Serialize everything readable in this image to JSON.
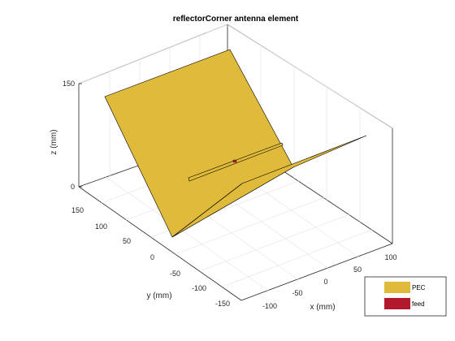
{
  "figure": {
    "title": "reflectorCorner antenna element"
  },
  "axes": {
    "z_label": "z (mm)",
    "y_label": "y (mm)",
    "x_label": "x (mm)",
    "z_ticks": [
      "150",
      "0"
    ],
    "y_ticks": [
      "150",
      "100",
      "50",
      "0",
      "-50",
      "-100",
      "-150"
    ],
    "x_ticks": [
      "-100",
      "-50",
      "0",
      "50",
      "100"
    ]
  },
  "legend": {
    "items": [
      {
        "label": "PEC",
        "color": "#e0ba3a"
      },
      {
        "label": "feed",
        "color": "#b3192d"
      }
    ]
  },
  "colors": {
    "reflector": "#e0ba3a",
    "feed": "#b3192d",
    "grid": "#e6e6e6",
    "box": "#262626"
  }
}
